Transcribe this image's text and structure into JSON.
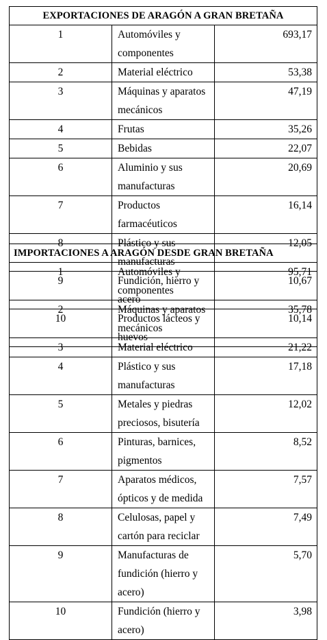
{
  "export_table": {
    "title": "EXPORTACIONES DE ARAGÓN A GRAN BRETAÑA",
    "rows": [
      {
        "rank": "1",
        "product": "Automóviles y componentes",
        "value": "693,17"
      },
      {
        "rank": "2",
        "product": "Material eléctrico",
        "value": "53,38"
      },
      {
        "rank": "3",
        "product": "Máquinas y aparatos mecánicos",
        "value": "47,19"
      },
      {
        "rank": "4",
        "product": "Frutas",
        "value": "35,26"
      },
      {
        "rank": "5",
        "product": "Bebidas",
        "value": "22,07"
      },
      {
        "rank": "6",
        "product": "Aluminio y sus manufacturas",
        "value": "20,69"
      },
      {
        "rank": "7",
        "product": "Productos farmacéuticos",
        "value": "16,14"
      },
      {
        "rank": "8",
        "product": "Plástico y sus manufacturas",
        "value": "12,05"
      },
      {
        "rank": "9",
        "product": "Fundición, hierro y acero",
        "value": "10,67"
      },
      {
        "rank": "10",
        "product": "Productos lácteos y huevos",
        "value": "10,14"
      }
    ]
  },
  "import_table": {
    "title": "IMPORTACIONES A ARAGÓN DESDE GRAN BRETAÑA",
    "rows": [
      {
        "rank": "1",
        "product": "Automóviles y componentes",
        "value": "95,71"
      },
      {
        "rank": "2",
        "product": "Máquinas y aparatos mecánicos",
        "value": "35,78"
      },
      {
        "rank": "3",
        "product": "Material eléctrico",
        "value": "21,22"
      },
      {
        "rank": "4",
        "product": "Plástico y sus manufacturas",
        "value": "17,18"
      },
      {
        "rank": "5",
        "product": "Metales y piedras preciosos, bisutería",
        "value": "12,02"
      },
      {
        "rank": "6",
        "product": "Pinturas, barnices, pigmentos",
        "value": "8,52"
      },
      {
        "rank": "7",
        "product": "Aparatos médicos, ópticos y de medida",
        "value": "7,57"
      },
      {
        "rank": "8",
        "product": "Celulosas, papel y cartón para reciclar",
        "value": "7,49"
      },
      {
        "rank": "9",
        "product": "Manufacturas de fundición (hierro y acero)",
        "value": "5,70"
      },
      {
        "rank": "10",
        "product": "Fundición (hierro y acero)",
        "value": "3,98"
      }
    ]
  }
}
